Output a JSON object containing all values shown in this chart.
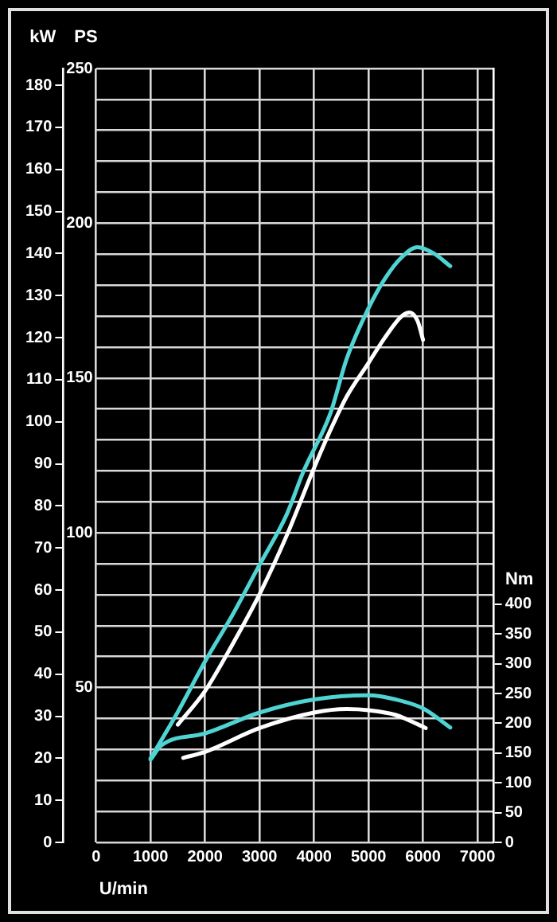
{
  "chart_data": {
    "type": "line",
    "xlabel": "U/min",
    "ylabel": "kW",
    "y2label": "PS",
    "y3label": "Nm",
    "xlim": [
      0,
      7300
    ],
    "xticks": [
      0,
      1000,
      2000,
      3000,
      4000,
      5000,
      6000,
      7000
    ],
    "ylim": [
      0,
      184
    ],
    "yticks": [
      0,
      10,
      20,
      30,
      40,
      50,
      60,
      70,
      80,
      90,
      100,
      110,
      120,
      130,
      140,
      150,
      160,
      170,
      180
    ],
    "y2lim": [
      0,
      250
    ],
    "y2ticks": [
      {
        "value": 0,
        "label": null
      },
      {
        "value": 10,
        "label": null
      },
      {
        "value": 20,
        "label": null
      },
      {
        "value": 30,
        "label": null
      },
      {
        "value": 40,
        "label": null
      },
      50,
      {
        "value": 60,
        "label": null
      },
      {
        "value": 70,
        "label": null
      },
      {
        "value": 80,
        "label": null
      },
      {
        "value": 90,
        "label": null
      },
      100,
      {
        "value": 110,
        "label": null
      },
      {
        "value": 120,
        "label": null
      },
      {
        "value": 130,
        "label": null
      },
      {
        "value": 140,
        "label": null
      },
      150,
      {
        "value": 160,
        "label": null
      },
      {
        "value": 170,
        "label": null
      },
      {
        "value": 180,
        "label": null
      },
      {
        "value": 190,
        "label": null
      },
      200,
      {
        "value": 210,
        "label": null
      },
      {
        "value": 220,
        "label": null
      },
      {
        "value": 230,
        "label": null
      },
      {
        "value": 240,
        "label": null
      },
      250
    ],
    "y3lim": [
      0,
      1300
    ],
    "y3ticks": [
      0,
      50,
      100,
      150,
      200,
      250,
      300,
      350,
      400
    ],
    "grid": true,
    "legend": false,
    "marker": "none",
    "line_style": "solid",
    "series": [
      {
        "color": "#4fd3d3",
        "axis": "y",
        "x": [
          1000,
          1500,
          2000,
          2500,
          3000,
          3500,
          3800,
          4300,
          4600,
          5000,
          5300,
          5600,
          5900,
          6200,
          6500
        ],
        "values": [
          20,
          31,
          43,
          54,
          66,
          78,
          88,
          102,
          115,
          127,
          134,
          139,
          141.5,
          140,
          137
        ]
      },
      {
        "color": "#ffffff",
        "axis": "y",
        "x": [
          1500,
          2000,
          2500,
          3000,
          3500,
          4000,
          4300,
          4600,
          5000,
          5300,
          5600,
          5750,
          5900,
          6000
        ],
        "values": [
          28,
          36,
          47,
          59,
          73,
          89,
          98,
          106,
          114,
          120,
          125,
          126,
          124,
          119.5
        ]
      },
      {
        "color": "#4fd3d3",
        "axis": "y3",
        "x": [
          1000,
          1200,
          2000,
          3000,
          4000,
          5000,
          5500,
          6000,
          6500
        ],
        "values": [
          139,
          163,
          183,
          218,
          240,
          247,
          240,
          225,
          193
        ]
      },
      {
        "color": "#ffffff",
        "axis": "y3",
        "x": [
          1600,
          2000,
          3000,
          4000,
          4600,
          5000,
          5500,
          6050
        ],
        "values": [
          142,
          152,
          192,
          218,
          224,
          222,
          214,
          192
        ]
      }
    ]
  }
}
